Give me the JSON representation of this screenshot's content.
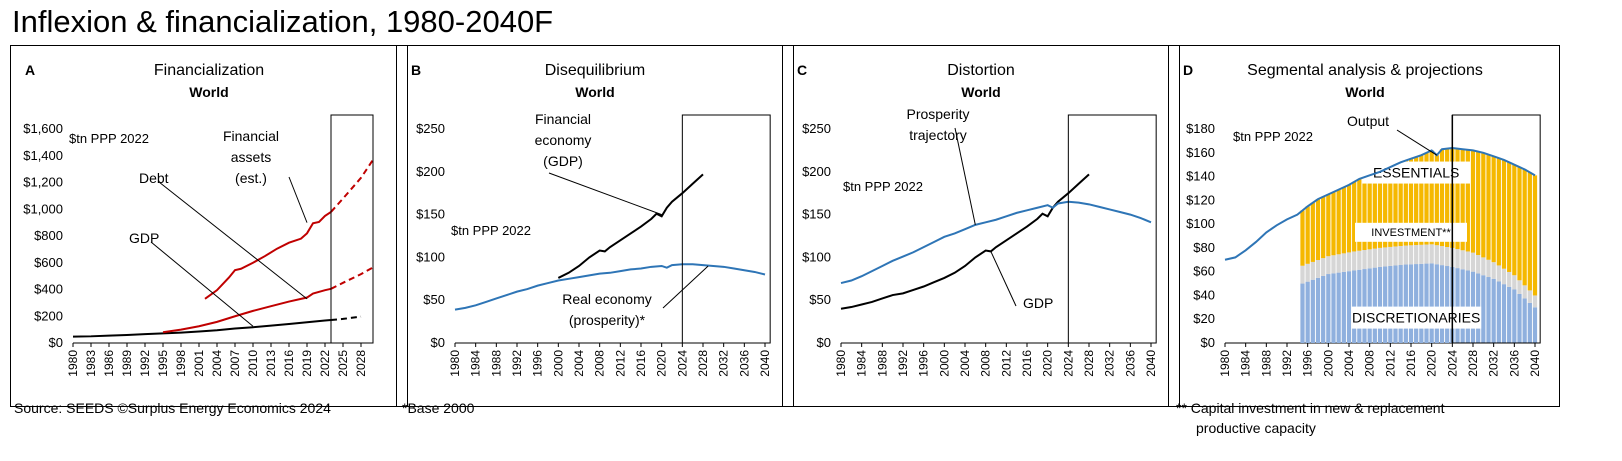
{
  "page": {
    "title": "Inflexion & financialization, 1980-2040F",
    "footer_source": "Source: SEEDS    ©Surplus Energy Economics 2024",
    "footer_base": "*Base 2000",
    "footer_note": "** Capital investment in new & replacement productive capacity",
    "footer_note_line1": "** Capital investment in new & replacement",
    "footer_note_line2": "productive capacity"
  },
  "colors": {
    "black": "#000000",
    "red": "#c00000",
    "blue": "#2e75b6",
    "gold": "#f5b800",
    "grey": "#d6d6d6",
    "lightblue": "#8fb0de"
  },
  "chart_data": [
    {
      "id": "A",
      "type": "line",
      "letter": "A",
      "title": "Financialization",
      "subtitle": "World",
      "unit_label": "$tn PPP 2022",
      "ylim": [
        0,
        1600
      ],
      "yticks": [
        0,
        200,
        400,
        600,
        800,
        1000,
        1200,
        1400,
        1600
      ],
      "ytick_labels": [
        "$0",
        "$200",
        "$400",
        "$600",
        "$800",
        "$1,000",
        "$1,200",
        "$1,400",
        "$1,600"
      ],
      "xlim": [
        1980,
        2030
      ],
      "xticks": [
        1980,
        1983,
        1986,
        1989,
        1992,
        1995,
        1998,
        2001,
        2004,
        2007,
        2010,
        2013,
        2016,
        2019,
        2022,
        2025,
        2028
      ],
      "projection_box": [
        2023,
        2030
      ],
      "series": [
        {
          "name": "GDP",
          "color": "black",
          "x": [
            1980,
            1983,
            1986,
            1989,
            1992,
            1995,
            1998,
            2001,
            2004,
            2007,
            2010,
            2013,
            2016,
            2019,
            2022,
            2023
          ],
          "y": [
            48,
            50,
            55,
            60,
            66,
            72,
            78,
            86,
            95,
            108,
            118,
            130,
            142,
            155,
            168,
            172
          ],
          "proj_x": [
            2023,
            2025,
            2028
          ],
          "proj_y": [
            172,
            180,
            197
          ]
        },
        {
          "name": "Debt",
          "color": "red",
          "x": [
            1995,
            1998,
            2001,
            2004,
            2007,
            2010,
            2013,
            2016,
            2019,
            2020,
            2022,
            2023
          ],
          "y": [
            80,
            100,
            125,
            158,
            200,
            240,
            275,
            310,
            340,
            370,
            395,
            405
          ],
          "proj_x": [
            2023,
            2025,
            2028,
            2030
          ],
          "proj_y": [
            405,
            450,
            515,
            565
          ]
        },
        {
          "name": "Financial assets (est.)",
          "color": "red",
          "x": [
            2002,
            2004,
            2006,
            2007,
            2008,
            2010,
            2012,
            2014,
            2016,
            2018,
            2019,
            2020,
            2021,
            2022,
            2023
          ],
          "y": [
            330,
            395,
            490,
            545,
            555,
            600,
            650,
            705,
            750,
            780,
            820,
            895,
            905,
            950,
            980
          ],
          "proj_x": [
            2023,
            2025,
            2028,
            2030
          ],
          "proj_y": [
            980,
            1080,
            1235,
            1370
          ]
        }
      ],
      "annotations": [
        {
          "lines": [
            "Financial",
            "assets",
            "(est.)"
          ],
          "target": [
            2019,
            900
          ]
        },
        {
          "lines": [
            "Debt"
          ],
          "target": [
            2019,
            330
          ]
        },
        {
          "lines": [
            "GDP"
          ],
          "target": [
            2010,
            125
          ]
        }
      ]
    },
    {
      "id": "B",
      "type": "line",
      "letter": "B",
      "title": "Disequilibrium",
      "subtitle": "World",
      "unit_label": "$tn PPP 2022",
      "ylim": [
        0,
        250
      ],
      "yticks": [
        0,
        50,
        100,
        150,
        200,
        250
      ],
      "ytick_labels": [
        "$0",
        "$50",
        "$100",
        "$150",
        "$200",
        "$250"
      ],
      "xlim": [
        1980,
        2040
      ],
      "xticks": [
        1980,
        1984,
        1988,
        1992,
        1996,
        2000,
        2004,
        2008,
        2012,
        2016,
        2020,
        2024,
        2028,
        2032,
        2036,
        2040
      ],
      "projection_box": [
        2024,
        2041
      ],
      "series": [
        {
          "name": "Financial economy (GDP)",
          "color": "black",
          "x": [
            2000,
            2002,
            2004,
            2006,
            2008,
            2009,
            2010,
            2012,
            2014,
            2016,
            2018,
            2019,
            2020,
            2021,
            2022,
            2024,
            2026,
            2028
          ],
          "y": [
            76,
            82,
            90,
            100,
            108,
            107,
            112,
            120,
            128,
            136,
            145,
            151,
            148,
            158,
            165,
            175,
            186,
            197
          ]
        },
        {
          "name": "Real economy (prosperity)*",
          "color": "blue",
          "x": [
            1980,
            1982,
            1984,
            1986,
            1988,
            1990,
            1992,
            1994,
            1996,
            1998,
            2000,
            2002,
            2004,
            2006,
            2008,
            2010,
            2012,
            2014,
            2016,
            2018,
            2020,
            2021,
            2022,
            2024,
            2026,
            2028,
            2030,
            2032,
            2034,
            2036,
            2038,
            2040
          ],
          "y": [
            39,
            41,
            44,
            48,
            52,
            56,
            60,
            63,
            67,
            70,
            73,
            75,
            77,
            79,
            81,
            82,
            84,
            86,
            87,
            89,
            90,
            88,
            91,
            92,
            92,
            91,
            90,
            89,
            87,
            85,
            83,
            80
          ]
        }
      ],
      "annotations": [
        {
          "lines": [
            "Financial",
            "economy",
            "(GDP)"
          ],
          "target": [
            2020,
            150
          ]
        },
        {
          "lines": [
            "Real economy",
            "(prosperity)*"
          ],
          "target": [
            2029,
            90
          ]
        }
      ]
    },
    {
      "id": "C",
      "type": "line",
      "letter": "C",
      "title": "Distortion",
      "subtitle": "World",
      "unit_label": "$tn PPP 2022",
      "ylim": [
        0,
        250
      ],
      "yticks": [
        0,
        50,
        100,
        150,
        200,
        250
      ],
      "ytick_labels": [
        "$0",
        "$50",
        "$100",
        "$150",
        "$200",
        "$250"
      ],
      "xlim": [
        1980,
        2040
      ],
      "xticks": [
        1980,
        1984,
        1988,
        1992,
        1996,
        2000,
        2004,
        2008,
        2012,
        2016,
        2020,
        2024,
        2028,
        2032,
        2036,
        2040
      ],
      "projection_box": [
        2024,
        2041
      ],
      "series": [
        {
          "name": "GDP",
          "color": "black",
          "x": [
            1980,
            1982,
            1984,
            1986,
            1988,
            1990,
            1992,
            1994,
            1996,
            1998,
            2000,
            2002,
            2004,
            2006,
            2008,
            2009,
            2010,
            2012,
            2014,
            2016,
            2018,
            2019,
            2020,
            2021,
            2022,
            2024,
            2026,
            2028
          ],
          "y": [
            40,
            42,
            45,
            48,
            52,
            56,
            58,
            62,
            66,
            71,
            76,
            82,
            90,
            100,
            108,
            107,
            112,
            120,
            128,
            136,
            145,
            151,
            148,
            158,
            165,
            175,
            186,
            197
          ]
        },
        {
          "name": "Prosperity trajectory",
          "color": "blue",
          "x": [
            1980,
            1982,
            1984,
            1986,
            1988,
            1990,
            1992,
            1994,
            1996,
            1998,
            2000,
            2002,
            2004,
            2006,
            2008,
            2010,
            2012,
            2014,
            2016,
            2018,
            2020,
            2021,
            2022,
            2024,
            2026,
            2028,
            2030,
            2032,
            2034,
            2036,
            2038,
            2040
          ],
          "y": [
            70,
            73,
            78,
            84,
            90,
            96,
            101,
            106,
            112,
            118,
            124,
            128,
            133,
            138,
            141,
            144,
            148,
            152,
            155,
            158,
            161,
            158,
            163,
            165,
            164,
            162,
            159,
            156,
            153,
            150,
            146,
            141
          ]
        }
      ],
      "annotations": [
        {
          "lines": [
            "Prosperity",
            "trajectory"
          ],
          "target": [
            2006,
            138
          ]
        },
        {
          "lines": [
            "GDP"
          ],
          "target": [
            2009,
            107
          ]
        }
      ]
    },
    {
      "id": "D",
      "type": "area",
      "letter": "D",
      "title": "Segmental analysis & projections",
      "subtitle": "World",
      "unit_label": "$tn PPP 2022",
      "ylim": [
        0,
        180
      ],
      "yticks": [
        0,
        20,
        40,
        60,
        80,
        100,
        120,
        140,
        160,
        180
      ],
      "ytick_labels": [
        "$0",
        "$20",
        "$40",
        "$60",
        "$80",
        "$100",
        "$120",
        "$140",
        "$160",
        "$180"
      ],
      "xlim": [
        1980,
        2040
      ],
      "xticks": [
        1980,
        1984,
        1988,
        1992,
        1996,
        2000,
        2004,
        2008,
        2012,
        2016,
        2020,
        2024,
        2028,
        2032,
        2036,
        2040
      ],
      "projection_box": [
        2024,
        2041
      ],
      "divider_year": 2024,
      "output": {
        "name": "Output",
        "x": [
          1980,
          1982,
          1984,
          1986,
          1988,
          1990,
          1992,
          1994,
          1996,
          1998,
          2000,
          2002,
          2004,
          2006,
          2008,
          2010,
          2012,
          2014,
          2016,
          2018,
          2020,
          2021,
          2022,
          2024,
          2026,
          2028,
          2030,
          2032,
          2034,
          2036,
          2038,
          2040
        ],
        "y": [
          70,
          72,
          78,
          85,
          93,
          99,
          104,
          108,
          115,
          121,
          125,
          129,
          133,
          138,
          141,
          144,
          148,
          152,
          155,
          158,
          162,
          158,
          163,
          164,
          163,
          162,
          160,
          157,
          154,
          150,
          146,
          141
        ]
      },
      "segments": {
        "years": [
          1995,
          2000,
          2005,
          2010,
          2015,
          2020,
          2024,
          2028,
          2032,
          2036,
          2040
        ],
        "discretionaries": [
          50,
          58,
          61,
          64,
          66,
          67,
          64,
          60,
          54,
          45,
          30
        ],
        "investment": [
          15,
          15,
          16,
          16,
          16,
          16,
          16,
          16,
          14,
          12,
          10
        ],
        "labels": [
          "DISCRETIONARIES",
          "INVESTMENT**",
          "ESSENTIALS"
        ]
      },
      "annotations": [
        {
          "lines": [
            "Output"
          ],
          "target": [
            2021,
            158
          ]
        }
      ]
    }
  ]
}
